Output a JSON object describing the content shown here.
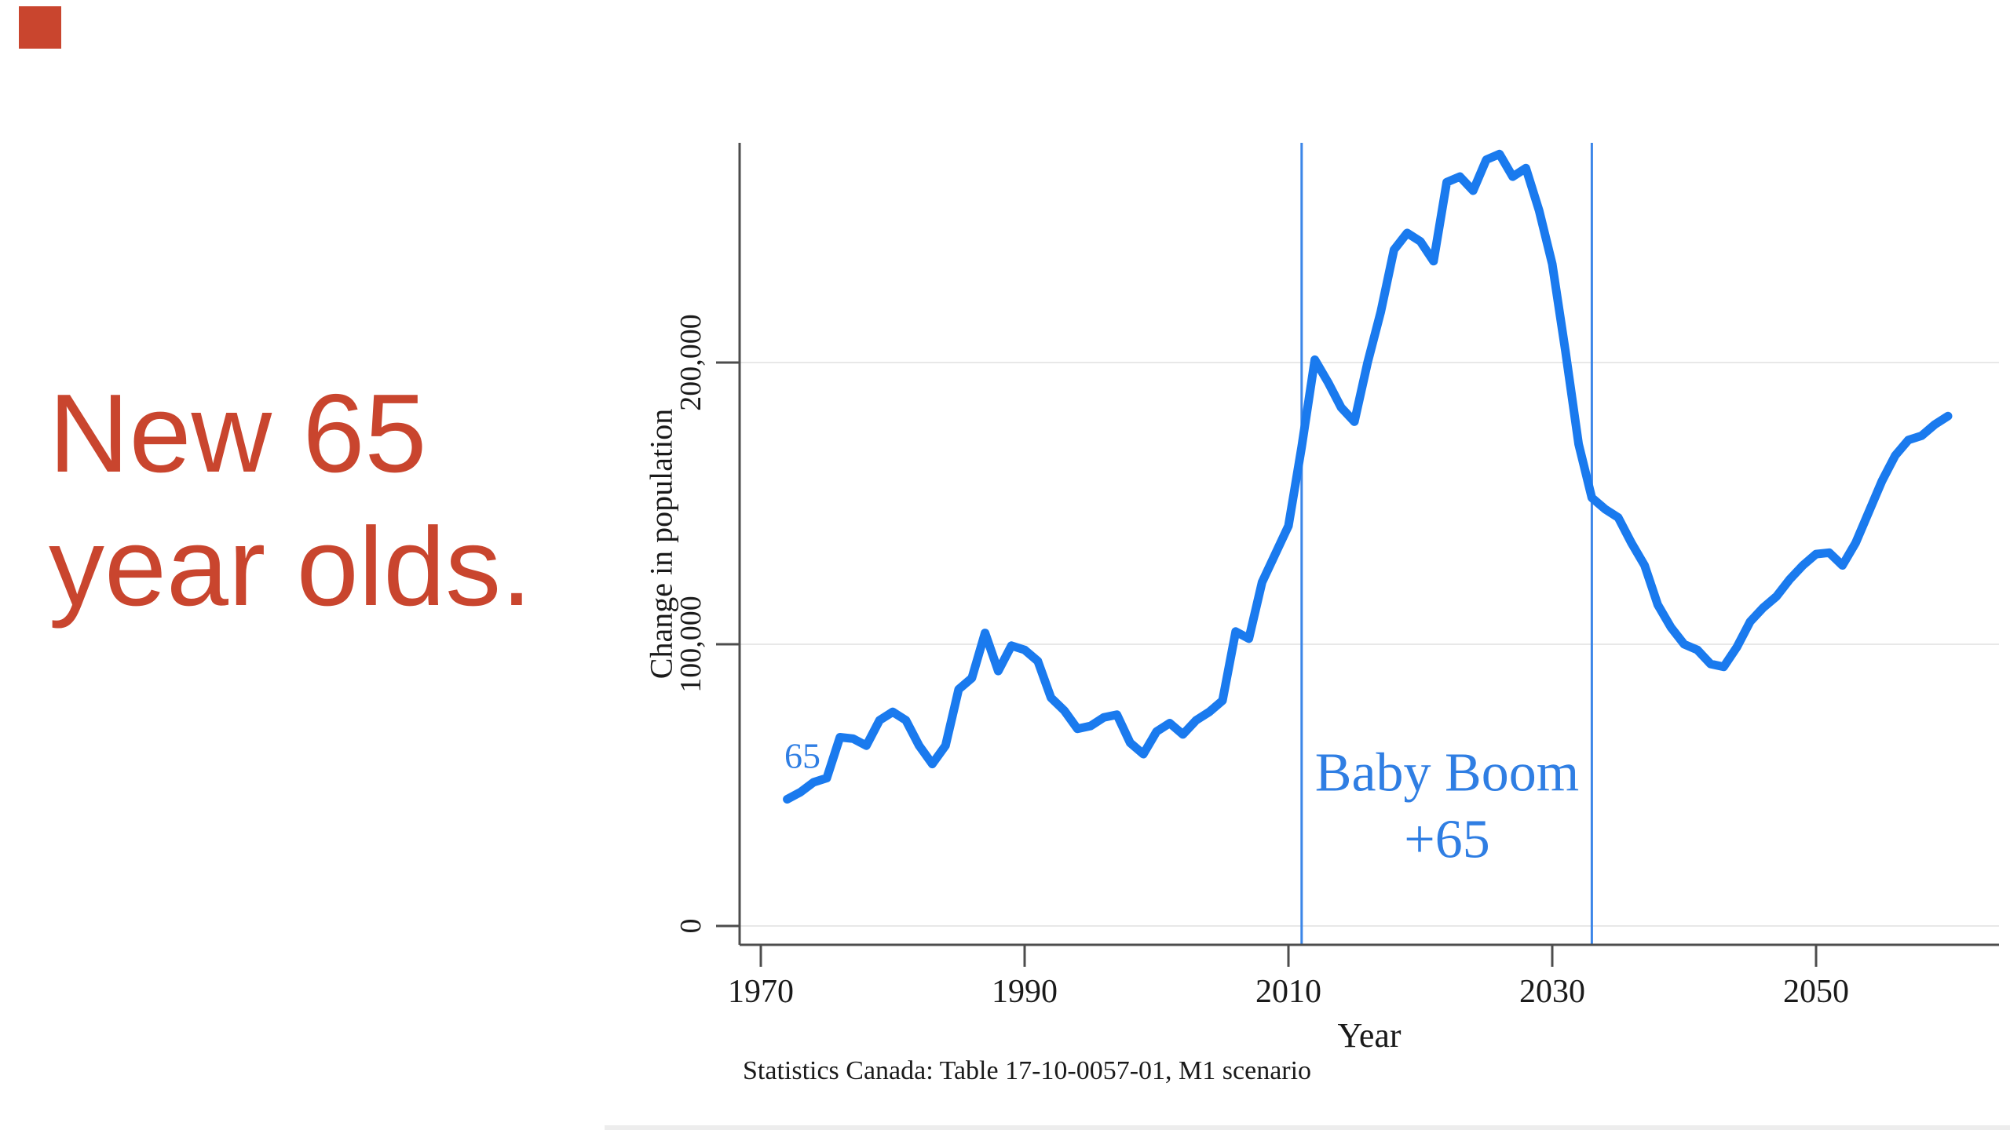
{
  "decor": {
    "red_square_color": "#C9452E",
    "bottom_strip_color": "#EDEDED"
  },
  "headline": {
    "line1": "New 65",
    "line2": "year olds.",
    "color": "#C9452E"
  },
  "chart_data": {
    "type": "line",
    "title": "",
    "xlabel": "Year",
    "ylabel": "Change in population",
    "source": "Statistics Canada: Table 17-10-0057-01, M1 scenario",
    "xlim": [
      1968.4,
      2064
    ],
    "ylim": [
      -5000,
      278000
    ],
    "grid": "horizontal light-gray lines at y ticks",
    "legend": "none",
    "x_ticks": [
      1970,
      1990,
      2010,
      2030,
      2050
    ],
    "y_ticks": [
      {
        "value": 0,
        "label": "0"
      },
      {
        "value": 100000,
        "label": "100,000"
      },
      {
        "value": 200000,
        "label": "200,000"
      }
    ],
    "reference_lines": {
      "years": [
        2011,
        2033
      ],
      "color": "#3C86E8",
      "label_line1": "Baby Boom",
      "label_line2": "+65"
    },
    "annotation_color": "#2F7EE3",
    "series_start_label": "65",
    "axis_color": "#4D4D4D",
    "gridline_color": "#E8E8E8",
    "series": [
      {
        "name": "New 65 year olds",
        "color": "#1A7AEE",
        "start_year": 1972,
        "end_year": 2060,
        "cadence": "annual",
        "values": [
          45000,
          47500,
          51000,
          52500,
          67000,
          66500,
          64000,
          73000,
          76000,
          73000,
          64000,
          57500,
          64000,
          84000,
          88000,
          104000,
          90500,
          99500,
          98000,
          94000,
          81000,
          76500,
          70000,
          71000,
          74000,
          75000,
          65000,
          61000,
          69000,
          72000,
          68000,
          73000,
          76000,
          80000,
          104500,
          102000,
          122000,
          132000,
          142000,
          170000,
          201000,
          193000,
          184000,
          179000,
          200000,
          218000,
          240000,
          246000,
          243000,
          236000,
          264000,
          266000,
          261000,
          272000,
          274000,
          266000,
          269000,
          254000,
          235000,
          204000,
          171000,
          152000,
          148000,
          145000,
          136000,
          128000,
          114000,
          106000,
          100000,
          98000,
          93000,
          92000,
          99000,
          108000,
          113000,
          117000,
          123000,
          128000,
          132000,
          132500,
          128000,
          136000,
          147000,
          158000,
          167000,
          172500,
          174000,
          178000,
          181000
        ]
      }
    ]
  }
}
